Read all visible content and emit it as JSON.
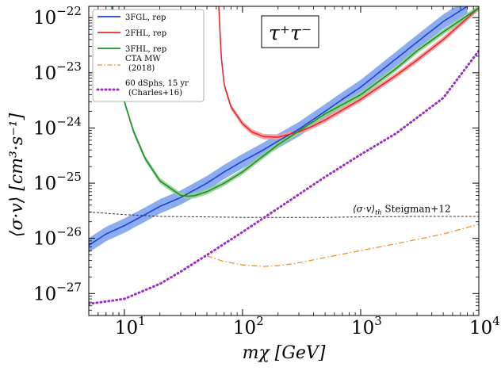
{
  "chart_data": {
    "type": "line",
    "title": "τ⁺τ⁻",
    "xlabel": "mχ [GeV]",
    "ylabel": "⟨σ·v⟩ [cm³·s⁻¹]",
    "xscale": "log",
    "yscale": "log",
    "xlim": [
      5,
      10000
    ],
    "ylim": [
      4e-28,
      1.6e-22
    ],
    "x_ticks": [
      {
        "value": 10,
        "base": "10",
        "exp": "1"
      },
      {
        "value": 100,
        "base": "10",
        "exp": "2"
      },
      {
        "value": 1000,
        "base": "10",
        "exp": "3"
      },
      {
        "value": 10000,
        "base": "10",
        "exp": "4"
      }
    ],
    "y_ticks": [
      {
        "value": 1e-27,
        "base": "10",
        "exp": "−27"
      },
      {
        "value": 1e-26,
        "base": "10",
        "exp": "−26"
      },
      {
        "value": 1e-25,
        "base": "10",
        "exp": "−25"
      },
      {
        "value": 1e-24,
        "base": "10",
        "exp": "−24"
      },
      {
        "value": 1e-23,
        "base": "10",
        "exp": "−23"
      },
      {
        "value": 1e-22,
        "base": "10",
        "exp": "−22"
      }
    ],
    "series": [
      {
        "name": "3FGL, rep",
        "color": "#1f3fd6",
        "band_color": "#7fa3f0",
        "style": "solid",
        "band_factor": 1.35,
        "x": [
          5,
          7,
          10,
          15,
          20,
          30,
          50,
          70,
          100,
          150,
          200,
          300,
          500,
          700,
          1000,
          2000,
          3000,
          5000,
          8000
        ],
        "y": [
          7.5e-27,
          1.2e-26,
          1.7e-26,
          2.7e-26,
          3.8e-26,
          5.5e-26,
          1e-25,
          1.6e-25,
          2.5e-25,
          4e-25,
          5.8e-25,
          9.5e-25,
          2e-24,
          3.3e-24,
          5.5e-24,
          1.8e-23,
          3.6e-23,
          8.5e-23,
          1.6e-22
        ]
      },
      {
        "name": "2FHL, rep",
        "color": "#e8282f",
        "band_color": "#f29a9a",
        "style": "solid",
        "band_factor": 1.12,
        "x": [
          63,
          66,
          70,
          80,
          100,
          120,
          150,
          200,
          300,
          400,
          500,
          1000,
          2000,
          3000,
          5000,
          10000
        ],
        "y": [
          1.6e-22,
          2e-23,
          6e-24,
          2.4e-24,
          1.2e-24,
          8.5e-25,
          7e-25,
          6.8e-25,
          8.5e-25,
          1.1e-24,
          1.4e-24,
          3.3e-24,
          9e-24,
          1.7e-23,
          4e-23,
          1.5e-22
        ]
      },
      {
        "name": "3FHL, rep",
        "color": "#1f8f2a",
        "band_color": "#8fd28f",
        "style": "solid",
        "band_factor": 1.12,
        "x": [
          7.8,
          8,
          8.5,
          10,
          12,
          15,
          20,
          30,
          35,
          40,
          50,
          70,
          100,
          200,
          500,
          1000,
          2000,
          3000,
          5000,
          10000
        ],
        "y": [
          1.6e-22,
          1e-22,
          2e-23,
          3e-24,
          8.5e-25,
          2.8e-25,
          1.1e-25,
          6e-26,
          5.8e-26,
          6e-26,
          7e-26,
          1e-25,
          1.6e-25,
          5e-25,
          1.8e-24,
          4e-24,
          1.2e-23,
          2.5e-23,
          5.5e-23,
          1.5e-22
        ]
      },
      {
        "name": "CTA MW",
        "legend_sub": "(2018)",
        "color": "#f39020",
        "style": "dashdot",
        "x": [
          50,
          70,
          100,
          150,
          200,
          300,
          500,
          1000,
          2000,
          5000,
          10000
        ],
        "y": [
          4.8e-27,
          3.8e-27,
          3.3e-27,
          3.1e-27,
          3.2e-27,
          3.6e-27,
          4.5e-27,
          6e-27,
          8e-27,
          1.2e-26,
          1.8e-26
        ]
      },
      {
        "name": "60 dSphs, 15 yr",
        "legend_sub": "(Charles+16)",
        "color": "#9b30c0",
        "style": "dotted",
        "x": [
          5,
          10,
          20,
          30,
          50,
          100,
          200,
          500,
          1000,
          2000,
          5000,
          10000
        ],
        "y": [
          6.5e-28,
          8e-28,
          1.5e-27,
          2.5e-27,
          5e-27,
          1.3e-26,
          3.5e-26,
          1.3e-25,
          3.3e-25,
          8e-25,
          3.5e-24,
          2.5e-23
        ]
      }
    ],
    "reference_line": {
      "label_main": "⟨σ·v⟩",
      "label_sub": "th",
      "label_suffix": " Steigman+12",
      "color": "#333333",
      "style": "dashed",
      "x": [
        5,
        10,
        20,
        50,
        100,
        200,
        500,
        1000,
        3000,
        10000
      ],
      "y": [
        3e-26,
        2.7e-26,
        2.5e-26,
        2.45e-26,
        2.4e-26,
        2.4e-26,
        2.4e-26,
        2.45e-26,
        2.5e-26,
        2.5e-26
      ]
    },
    "legend_position": "top-left",
    "grid": false
  }
}
